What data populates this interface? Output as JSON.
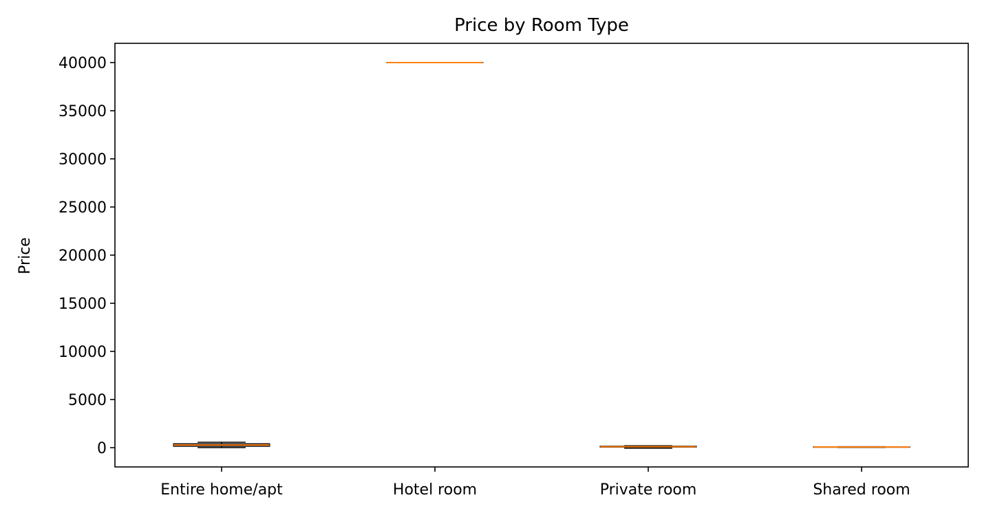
{
  "chart_data": {
    "type": "box",
    "title": "Price by Room Type",
    "xlabel": "",
    "ylabel": "Price",
    "ylim": [
      -2000,
      42000
    ],
    "yticks": [
      0,
      5000,
      10000,
      15000,
      20000,
      25000,
      30000,
      35000,
      40000
    ],
    "categories": [
      "Entire home/apt",
      "Hotel room",
      "Private room",
      "Shared room"
    ],
    "boxes": [
      {
        "category": "Entire home/apt",
        "whisker_low": 10,
        "q1": 150,
        "median": 280,
        "q3": 400,
        "whisker_high": 560
      },
      {
        "category": "Hotel room",
        "whisker_low": 40000,
        "q1": 40000,
        "median": 40000,
        "q3": 40000,
        "whisker_high": 40000
      },
      {
        "category": "Private room",
        "whisker_low": -50,
        "q1": 60,
        "median": 100,
        "q3": 150,
        "whisker_high": 200
      },
      {
        "category": "Shared room",
        "whisker_low": 30,
        "q1": 45,
        "median": 60,
        "q3": 80,
        "whisker_high": 100
      }
    ],
    "grid": false,
    "legend": "none",
    "colors": {
      "box_edge": "#000000",
      "median": "#ff7f0e",
      "axes": "#000000"
    }
  }
}
